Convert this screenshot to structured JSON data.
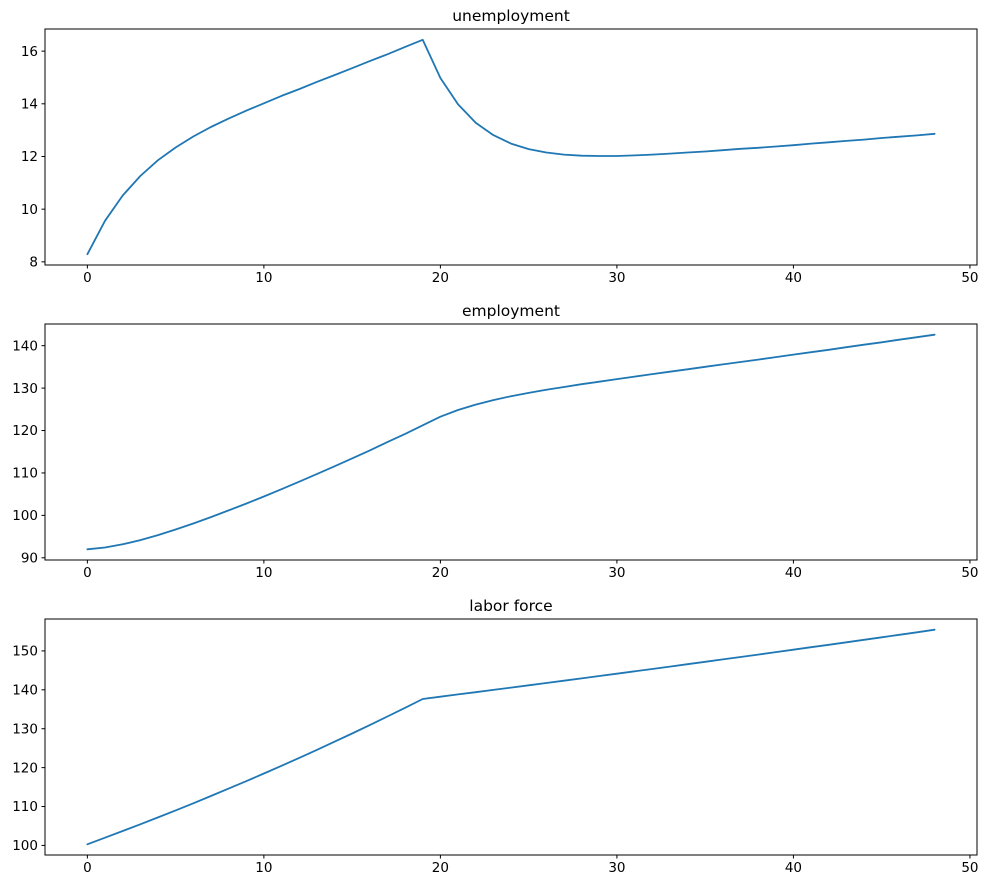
{
  "figure": {
    "background": "#ffffff",
    "axes_frame_color": "#000000",
    "tick_label_color": "#000000",
    "line_color": "#1f77b4"
  },
  "chart_data": [
    {
      "type": "line",
      "title": "unemployment",
      "xlabel": "",
      "ylabel": "",
      "grid": false,
      "line_color": "#1f77b4",
      "xticks": [
        0,
        10,
        20,
        30,
        40,
        50
      ],
      "yticks": [
        8,
        10,
        12,
        14,
        16
      ],
      "xlim": [
        -2.4,
        50.4
      ],
      "ylim": [
        7.88,
        16.84
      ],
      "x": [
        0,
        1,
        2,
        3,
        4,
        5,
        6,
        7,
        8,
        9,
        10,
        11,
        12,
        13,
        14,
        15,
        16,
        17,
        18,
        19,
        20,
        21,
        22,
        23,
        24,
        25,
        26,
        27,
        28,
        29,
        30,
        31,
        32,
        33,
        34,
        35,
        36,
        37,
        38,
        39,
        40,
        41,
        42,
        43,
        44,
        45,
        46,
        47,
        48
      ],
      "values": [
        8.29,
        9.56,
        10.52,
        11.26,
        11.86,
        12.34,
        12.76,
        13.12,
        13.44,
        13.74,
        14.02,
        14.3,
        14.56,
        14.83,
        15.09,
        15.35,
        15.62,
        15.88,
        16.16,
        16.43,
        14.98,
        13.98,
        13.28,
        12.81,
        12.49,
        12.28,
        12.15,
        12.07,
        12.03,
        12.02,
        12.02,
        12.04,
        12.07,
        12.11,
        12.15,
        12.19,
        12.24,
        12.29,
        12.33,
        12.38,
        12.43,
        12.49,
        12.54,
        12.59,
        12.64,
        12.7,
        12.75,
        12.8,
        12.86
      ]
    },
    {
      "type": "line",
      "title": "employment",
      "xlabel": "",
      "ylabel": "",
      "grid": false,
      "line_color": "#1f77b4",
      "xticks": [
        0,
        10,
        20,
        30,
        40,
        50
      ],
      "yticks": [
        90,
        100,
        110,
        120,
        130,
        140
      ],
      "xlim": [
        -2.4,
        50.4
      ],
      "ylim": [
        89.48,
        145.11
      ],
      "x": [
        0,
        1,
        2,
        3,
        4,
        5,
        6,
        7,
        8,
        9,
        10,
        11,
        12,
        13,
        14,
        15,
        16,
        17,
        18,
        19,
        20,
        21,
        22,
        23,
        24,
        25,
        26,
        27,
        28,
        29,
        30,
        31,
        32,
        33,
        34,
        35,
        36,
        37,
        38,
        39,
        40,
        41,
        42,
        43,
        44,
        45,
        46,
        47,
        48
      ],
      "values": [
        92.01,
        92.43,
        93.18,
        94.18,
        95.35,
        96.67,
        98.08,
        99.59,
        101.16,
        102.78,
        104.46,
        106.17,
        107.94,
        109.72,
        111.56,
        113.42,
        115.32,
        117.26,
        119.21,
        121.22,
        123.25,
        124.83,
        126.11,
        127.17,
        128.08,
        128.88,
        129.6,
        130.27,
        130.91,
        131.52,
        132.13,
        132.71,
        133.29,
        133.86,
        134.43,
        135.01,
        135.58,
        136.15,
        136.73,
        137.31,
        137.89,
        138.46,
        139.04,
        139.63,
        140.22,
        140.8,
        141.4,
        141.99,
        142.58
      ]
    },
    {
      "type": "line",
      "title": "labor force",
      "xlabel": "",
      "ylabel": "",
      "grid": false,
      "line_color": "#1f77b4",
      "xticks": [
        0,
        10,
        20,
        30,
        40,
        50
      ],
      "yticks": [
        100,
        110,
        120,
        130,
        140,
        150
      ],
      "xlim": [
        -2.4,
        50.4
      ],
      "ylim": [
        97.54,
        158.2
      ],
      "x": [
        0,
        1,
        2,
        3,
        4,
        5,
        6,
        7,
        8,
        9,
        10,
        11,
        12,
        13,
        14,
        15,
        16,
        17,
        18,
        19,
        20,
        21,
        22,
        23,
        24,
        25,
        26,
        27,
        28,
        29,
        30,
        31,
        32,
        33,
        34,
        35,
        36,
        37,
        38,
        39,
        40,
        41,
        42,
        43,
        44,
        45,
        46,
        47,
        48
      ],
      "values": [
        100.3,
        101.99,
        103.7,
        105.44,
        107.21,
        109.01,
        110.84,
        112.71,
        114.6,
        116.52,
        118.48,
        120.47,
        122.5,
        124.55,
        126.65,
        128.77,
        130.94,
        133.14,
        135.37,
        137.65,
        138.23,
        138.81,
        139.39,
        139.98,
        140.57,
        141.16,
        141.75,
        142.34,
        142.94,
        143.54,
        144.15,
        144.75,
        145.36,
        145.97,
        146.58,
        147.2,
        147.82,
        148.44,
        149.06,
        149.69,
        150.32,
        150.95,
        151.58,
        152.22,
        152.86,
        153.5,
        154.15,
        154.79,
        155.44
      ]
    }
  ]
}
